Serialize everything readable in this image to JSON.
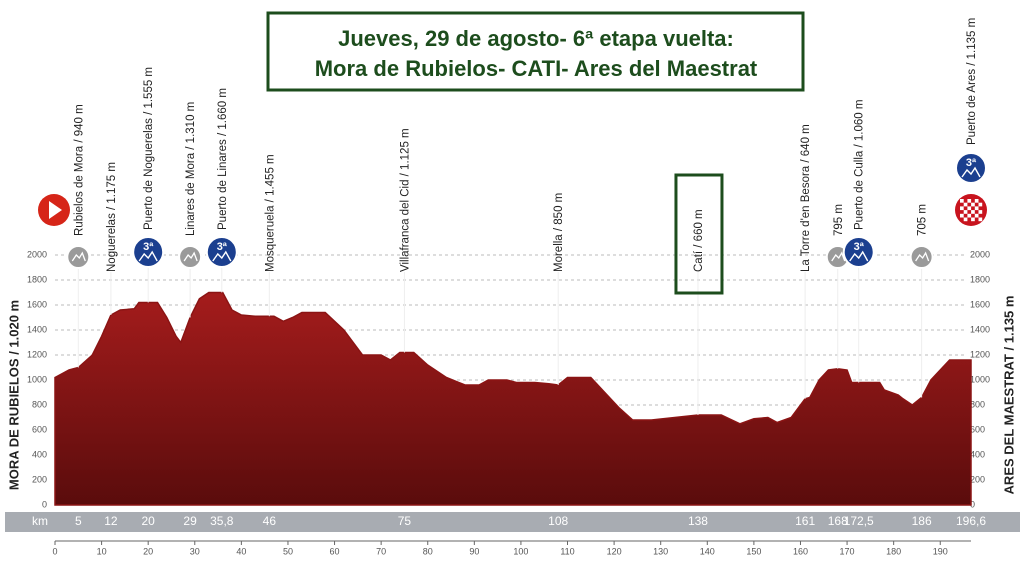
{
  "chart_data": {
    "type": "area",
    "title": [
      "Jueves, 29 de agosto- 6ª etapa vuelta:",
      "Mora de Rubielos- CATI- Ares del Maestrat"
    ],
    "start_label": "MORA DE RUBIELOS / 1.020 m",
    "finish_label": "ARES DEL MAESTRAT / 1.135 m",
    "km_label": "km",
    "color": "#8b1414",
    "x": [
      0,
      3,
      5,
      8,
      10,
      12,
      14,
      17,
      18,
      22,
      24,
      26,
      27,
      29,
      31,
      33,
      36,
      38,
      40,
      43,
      47,
      49,
      51,
      53,
      58,
      62,
      66,
      70,
      72,
      74,
      77,
      80,
      84,
      88,
      91,
      93,
      97,
      99,
      103,
      106,
      108,
      110,
      115,
      118,
      121,
      124,
      128,
      133,
      138,
      143,
      147,
      150,
      153,
      155,
      158,
      160,
      161,
      162,
      164,
      166,
      168,
      170,
      171,
      174,
      177,
      178,
      181,
      182,
      184,
      186,
      188,
      190,
      192,
      196.6
    ],
    "values": [
      1020,
      1080,
      1100,
      1200,
      1350,
      1520,
      1560,
      1570,
      1620,
      1620,
      1500,
      1350,
      1300,
      1500,
      1650,
      1700,
      1700,
      1560,
      1520,
      1510,
      1510,
      1470,
      1500,
      1540,
      1540,
      1400,
      1200,
      1200,
      1160,
      1220,
      1220,
      1120,
      1020,
      960,
      960,
      1000,
      1000,
      980,
      980,
      970,
      960,
      1020,
      1020,
      900,
      780,
      680,
      680,
      700,
      720,
      720,
      650,
      690,
      700,
      660,
      700,
      800,
      850,
      860,
      1000,
      1080,
      1090,
      1080,
      980,
      980,
      980,
      920,
      880,
      850,
      800,
      860,
      1000,
      1080,
      1160,
      1160
    ],
    "xlim": [
      0,
      196.6
    ],
    "xticks": [
      0,
      10,
      20,
      30,
      40,
      50,
      60,
      70,
      80,
      90,
      100,
      110,
      120,
      130,
      140,
      150,
      160,
      170,
      180,
      190
    ],
    "ylim": [
      0,
      2000
    ],
    "yticks": [
      0,
      200,
      400,
      600,
      800,
      1000,
      1200,
      1400,
      1600,
      1800,
      2000
    ],
    "grid": true,
    "waypoints": [
      {
        "label": "Rubielos de Mora / 940 m",
        "km": 5,
        "marker": "grey"
      },
      {
        "label": "Noguerelas / 1.175 m",
        "km": 12,
        "marker": "none"
      },
      {
        "label": "Puerto de Noguerelas / 1.555 m",
        "km": 20,
        "marker": "blue",
        "badge": "3ª"
      },
      {
        "label": "Linares de Mora / 1.310 m",
        "km": 29,
        "marker": "grey"
      },
      {
        "label": "Puerto de Linares / 1.660 m",
        "km": {
          "value": 35.8,
          "label": "35,8"
        },
        "marker": "blue",
        "badge": "3ª"
      },
      {
        "label": "Mosqueruela / 1.455 m",
        "km": 46,
        "marker": "none"
      },
      {
        "label": "Villafranca del Cid / 1.125 m",
        "km": 75,
        "marker": "none"
      },
      {
        "label": "Morella / 850 m",
        "km": 108,
        "marker": "none"
      },
      {
        "label": "Catí / 660 m",
        "km": 138,
        "marker": "boxed"
      },
      {
        "label": "La Torre d'en Besora / 640 m",
        "km": 161,
        "marker": "none"
      },
      {
        "label": "795 m",
        "km": 168,
        "marker": "grey"
      },
      {
        "label": "Puerto de Culla / 1.060 m",
        "km": {
          "value": 172.5,
          "label": "172,5"
        },
        "marker": "blue",
        "badge": "3ª"
      },
      {
        "label": "705 m",
        "km": 186,
        "marker": "grey"
      },
      {
        "label": "Puerto de Ares / 1.135 m",
        "km": {
          "value": 196.6,
          "label": "196,6"
        },
        "marker": "finish",
        "badge": "3ª"
      }
    ]
  }
}
